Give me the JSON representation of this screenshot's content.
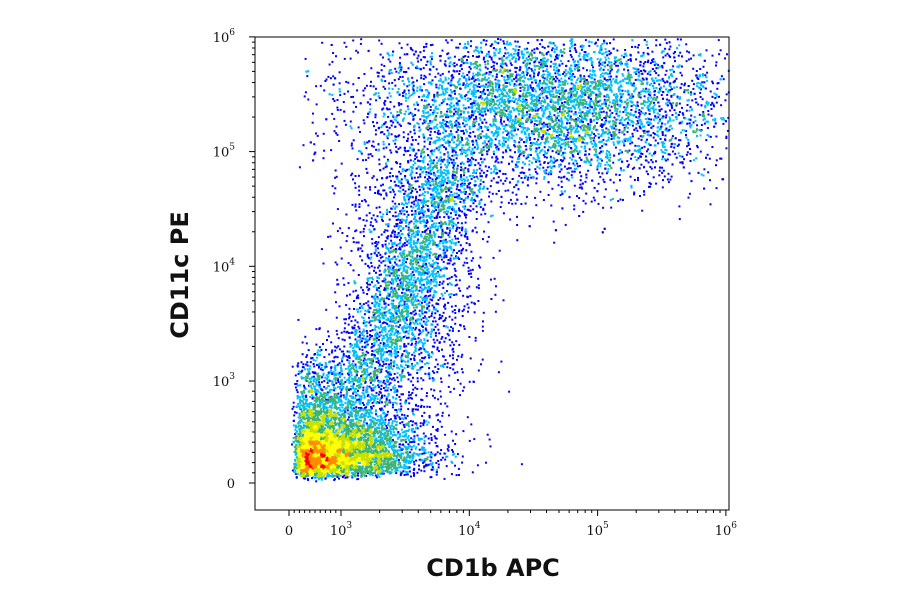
{
  "chart_data": {
    "type": "scatter",
    "title": "",
    "xlabel": "CD1b APC",
    "ylabel": "CD11c PE",
    "xscale": "biexponential",
    "yscale": "biexponential",
    "xlim": [
      -100,
      1200000
    ],
    "ylim": [
      -20,
      1200000
    ],
    "grid": false,
    "legend": "none",
    "x_ticks": [
      {
        "value": 0,
        "base": "0",
        "exp": ""
      },
      {
        "value": 1000,
        "base": "10",
        "exp": "3"
      },
      {
        "value": 10000,
        "base": "10",
        "exp": "4"
      },
      {
        "value": 100000,
        "base": "10",
        "exp": "5"
      },
      {
        "value": 1000000,
        "base": "10",
        "exp": "6"
      }
    ],
    "y_ticks": [
      {
        "value": 0,
        "base": "0",
        "exp": ""
      },
      {
        "value": 1000,
        "base": "10",
        "exp": "3"
      },
      {
        "value": 10000,
        "base": "10",
        "exp": "4"
      },
      {
        "value": 100000,
        "base": "10",
        "exp": "5"
      },
      {
        "value": 1000000,
        "base": "10",
        "exp": "6"
      }
    ],
    "color_scale": [
      "#00008b",
      "#0000ff",
      "#00bfff",
      "#3cb371",
      "#c8e000",
      "#ffff00",
      "#ff8c00",
      "#ff0000"
    ],
    "populations": [
      {
        "name_hidden": true,
        "center_x": 800,
        "center_y": 350,
        "spread_log_x": 0.35,
        "spread_log_y": 0.28,
        "density": "high"
      },
      {
        "name_hidden": true,
        "center_x": 3500,
        "center_y": 8000,
        "spread_log_x": 0.25,
        "spread_log_y": 0.7,
        "density": "low"
      },
      {
        "name_hidden": true,
        "center_x": 40000,
        "center_y": 250000,
        "spread_log_x": 0.7,
        "spread_log_y": 0.35,
        "density": "medium"
      }
    ]
  }
}
